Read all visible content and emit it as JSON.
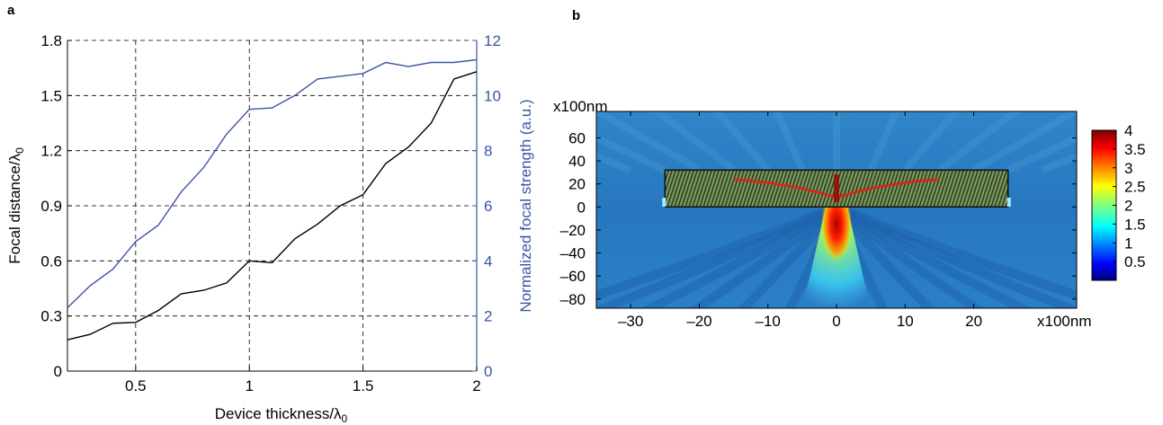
{
  "panels": {
    "a": {
      "label": "a"
    },
    "b": {
      "label": "b"
    }
  },
  "colors": {
    "focal_distance": "#000000",
    "focal_strength": "#3a55a4",
    "grid": "#000000"
  },
  "chart_data": [
    {
      "panel": "a",
      "type": "line",
      "xlabel": "Device thickness/λ0",
      "xlim": [
        0.2,
        2
      ],
      "xticks": [
        0.5,
        1,
        1.5,
        2
      ],
      "xtick_labels": [
        "0.5",
        "1",
        "1.5",
        "2"
      ],
      "y_left": {
        "label": "Focal distance/λ0",
        "lim": [
          0,
          1.8
        ],
        "ticks": [
          0,
          0.3,
          0.6,
          0.9,
          1.2,
          1.5,
          1.8
        ],
        "tick_labels": [
          "0",
          "0.3",
          "0.6",
          "0.9",
          "1.2",
          "1.5",
          "1.8"
        ]
      },
      "y_right": {
        "label": "Normalized focal strength (a.u.)",
        "lim": [
          0,
          12
        ],
        "ticks": [
          0,
          2,
          4,
          6,
          8,
          10,
          12
        ],
        "tick_labels": [
          "0",
          "2",
          "4",
          "6",
          "8",
          "10",
          "12"
        ]
      },
      "grid": true,
      "x": [
        0.2,
        0.3,
        0.4,
        0.5,
        0.6,
        0.7,
        0.8,
        0.9,
        1.0,
        1.1,
        1.2,
        1.3,
        1.4,
        1.5,
        1.6,
        1.7,
        1.8,
        1.9,
        2.0
      ],
      "series": [
        {
          "axis": "left",
          "color": "#000000",
          "values": [
            0.17,
            0.2,
            0.26,
            0.265,
            0.33,
            0.42,
            0.44,
            0.48,
            0.6,
            0.59,
            0.72,
            0.8,
            0.9,
            0.96,
            1.13,
            1.22,
            1.35,
            1.59,
            1.63
          ]
        },
        {
          "axis": "right",
          "color": "#3a55a4",
          "values": [
            2.3,
            3.1,
            3.7,
            4.7,
            5.3,
            6.5,
            7.4,
            8.6,
            9.5,
            9.55,
            10.0,
            10.6,
            10.7,
            10.8,
            11.2,
            11.05,
            11.2,
            11.2,
            11.3
          ]
        }
      ]
    },
    {
      "panel": "b",
      "type": "heatmap",
      "x_unit_label": "x100nm",
      "y_unit_label": "x100nm",
      "xlim": [
        -35,
        35
      ],
      "ylim": [
        -88,
        83
      ],
      "xticks": [
        -30,
        -20,
        -10,
        0,
        10,
        20
      ],
      "xtick_labels": [
        "–30",
        "–20",
        "–10",
        "0",
        "10",
        "20"
      ],
      "yticks": [
        60,
        40,
        20,
        0,
        -20,
        -40,
        -60,
        -80
      ],
      "ytick_labels": [
        "60",
        "40",
        "20",
        "0",
        "–20",
        "–40",
        "–60",
        "–80"
      ],
      "colorbar": {
        "lim": [
          0,
          4
        ],
        "ticks": [
          0.5,
          1,
          1.5,
          2,
          2.5,
          3,
          3.5,
          4
        ],
        "tick_labels": [
          "0.5",
          "1",
          "1.5",
          "2",
          "2.5",
          "3",
          "3.5",
          "4"
        ],
        "colormap": "jet"
      },
      "device": {
        "x_range": [
          -25,
          25
        ],
        "y_range": [
          0,
          32
        ]
      },
      "focus": {
        "x": 0,
        "y": -15,
        "value": 4
      }
    }
  ]
}
